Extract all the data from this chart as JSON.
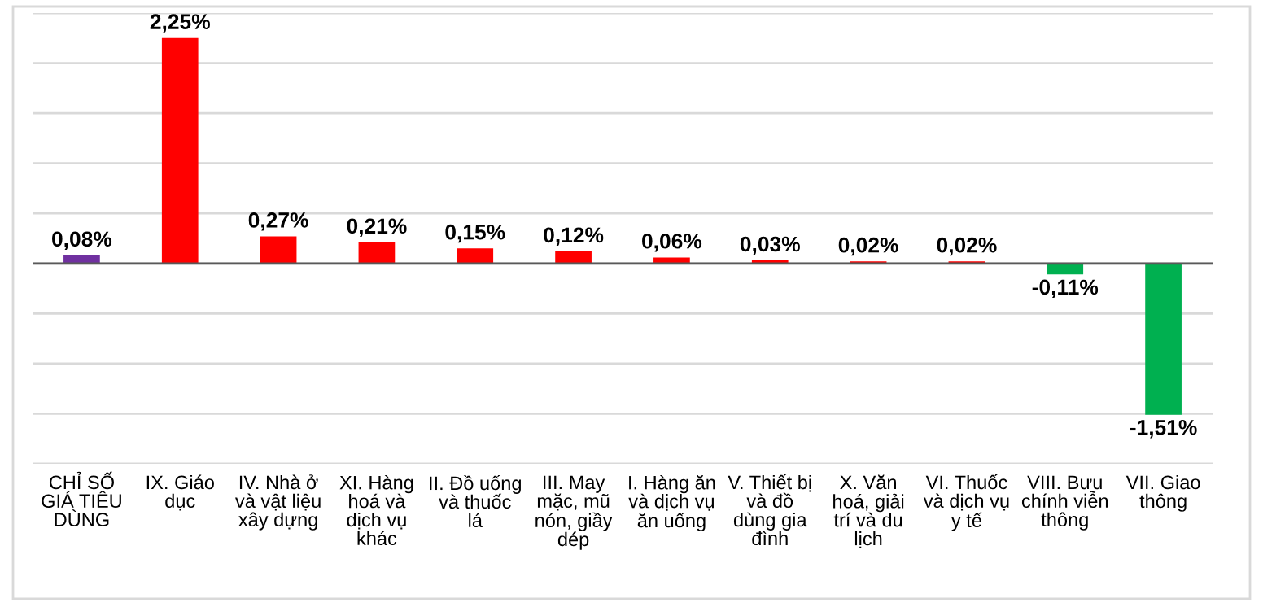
{
  "chart_data": {
    "type": "bar",
    "categories": [
      "CHỈ SỐ GIÁ TIÊU DÙNG",
      "IX. Giáo dục",
      "IV. Nhà ở và vật liệu xây dựng",
      "XI. Hàng hoá và dịch vụ khác",
      "II. Đồ uống và thuốc lá",
      "III. May mặc, mũ nón, giầy dép",
      "I. Hàng ăn và dịch vụ ăn uống",
      "V. Thiết bị và đồ dùng gia đình",
      "X. Văn hoá, giải trí và du lịch",
      "VI. Thuốc và dịch vụ y tế",
      "VIII. Bưu chính viễn thông",
      "VII. Giao thông"
    ],
    "values": [
      0.08,
      2.25,
      0.27,
      0.21,
      0.15,
      0.12,
      0.06,
      0.03,
      0.02,
      0.02,
      -0.11,
      -1.51
    ],
    "value_labels": [
      "0,08%",
      "2,25%",
      "0,27%",
      "0,21%",
      "0,15%",
      "0,12%",
      "0,06%",
      "0,03%",
      "0,02%",
      "0,02%",
      "-0,11%",
      "-1,51%"
    ],
    "colors": [
      "#7030a0",
      "#ff0000",
      "#ff0000",
      "#ff0000",
      "#ff0000",
      "#ff0000",
      "#ff0000",
      "#ff0000",
      "#ff0000",
      "#ff0000",
      "#00b050",
      "#00b050"
    ],
    "ylim": [
      -2,
      2.5
    ],
    "yticks": [
      {
        "value": -2,
        "label": null
      },
      {
        "value": -1.5,
        "label": null
      },
      {
        "value": -1,
        "label": null
      },
      {
        "value": -0.5,
        "label": null
      },
      {
        "value": 0,
        "label": null
      },
      {
        "value": 0.5,
        "label": null
      },
      {
        "value": 1,
        "label": null
      },
      {
        "value": 1.5,
        "label": null
      },
      {
        "value": 2,
        "label": null
      },
      {
        "value": 2.5,
        "label": null
      }
    ],
    "grid": "y",
    "tick_labels": "x"
  }
}
